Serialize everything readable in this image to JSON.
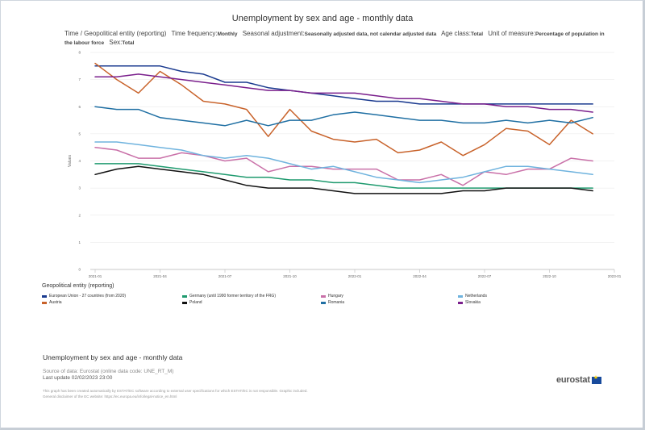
{
  "header": {
    "title": "Unemployment by sex and age - monthly data",
    "subtitle": [
      {
        "k": "Time / Geopolitical entity (reporting)",
        "v": ""
      },
      {
        "k": "Time frequency:",
        "v": "Monthly"
      },
      {
        "k": "Seasonal adjustment:",
        "v": "Seasonally adjusted data, not calendar adjusted data"
      },
      {
        "k": "Age class:",
        "v": "Total"
      },
      {
        "k": "Unit of measure:",
        "v": "Percentage of population in the labour force"
      },
      {
        "k": "Sex:",
        "v": "Total"
      }
    ]
  },
  "chart_data": {
    "type": "line",
    "title": "Unemployment by sex and age - monthly data",
    "xlabel": "",
    "ylabel": "Values",
    "ylim": [
      0,
      8
    ],
    "yticks": [
      "0",
      "1",
      "2",
      "3",
      "4",
      "5",
      "6",
      "7",
      "8"
    ],
    "grid": "horizontal",
    "x": [
      "2021-01",
      "2021-02",
      "2021-03",
      "2021-04",
      "2021-05",
      "2021-06",
      "2021-07",
      "2021-08",
      "2021-09",
      "2021-10",
      "2021-11",
      "2021-12",
      "2022-01",
      "2022-02",
      "2022-03",
      "2022-04",
      "2022-05",
      "2022-06",
      "2022-07",
      "2022-08",
      "2022-09",
      "2022-10",
      "2022-11",
      "2022-12"
    ],
    "xticks": [
      {
        "index": 0,
        "label": "2021-01"
      },
      {
        "index": 3,
        "label": "2021-04"
      },
      {
        "index": 6,
        "label": "2021-07"
      },
      {
        "index": 9,
        "label": "2021-10"
      },
      {
        "index": 12,
        "label": "2022-01"
      },
      {
        "index": 15,
        "label": "2022-04"
      },
      {
        "index": 18,
        "label": "2022-07"
      },
      {
        "index": 21,
        "label": "2022-10"
      },
      {
        "index": 24,
        "label": "2023-01"
      }
    ],
    "series": [
      {
        "name": "European Union - 27 countries (from 2020)",
        "color": "#1a3a8f",
        "values": [
          7.5,
          7.5,
          7.5,
          7.5,
          7.3,
          7.2,
          6.9,
          6.9,
          6.7,
          6.6,
          6.5,
          6.4,
          6.3,
          6.2,
          6.2,
          6.1,
          6.1,
          6.1,
          6.1,
          6.1,
          6.1,
          6.1,
          6.1,
          6.1
        ]
      },
      {
        "name": "Austria",
        "color": "#c8622a",
        "values": [
          7.6,
          7.0,
          6.5,
          7.3,
          6.8,
          6.2,
          6.1,
          5.9,
          4.9,
          5.9,
          5.1,
          4.8,
          4.7,
          4.8,
          4.3,
          4.4,
          4.7,
          4.2,
          4.6,
          5.2,
          5.1,
          4.6,
          5.5,
          5.0
        ]
      },
      {
        "name": "Germany (until 1990 former territory of the FRG)",
        "color": "#1e9a6e",
        "values": [
          3.9,
          3.9,
          3.9,
          3.8,
          3.7,
          3.6,
          3.5,
          3.4,
          3.4,
          3.3,
          3.3,
          3.2,
          3.2,
          3.1,
          3.0,
          3.0,
          3.0,
          3.0,
          3.0,
          3.0,
          3.0,
          3.0,
          3.0,
          3.0
        ]
      },
      {
        "name": "Poland",
        "color": "#111111",
        "values": [
          3.5,
          3.7,
          3.8,
          3.7,
          3.6,
          3.5,
          3.3,
          3.1,
          3.0,
          3.0,
          3.0,
          2.9,
          2.8,
          2.8,
          2.8,
          2.8,
          2.8,
          2.9,
          2.9,
          3.0,
          3.0,
          3.0,
          3.0,
          2.9
        ]
      },
      {
        "name": "Hungary",
        "color": "#c970a8",
        "values": [
          4.5,
          4.4,
          4.1,
          4.1,
          4.3,
          4.2,
          4.0,
          4.1,
          3.6,
          3.8,
          3.8,
          3.7,
          3.7,
          3.7,
          3.3,
          3.3,
          3.5,
          3.1,
          3.6,
          3.5,
          3.7,
          3.7,
          4.1,
          4.0
        ]
      },
      {
        "name": "Romania",
        "color": "#1f6fa3",
        "values": [
          6.0,
          5.9,
          5.9,
          5.6,
          5.5,
          5.4,
          5.3,
          5.5,
          5.3,
          5.5,
          5.5,
          5.7,
          5.8,
          5.7,
          5.6,
          5.5,
          5.5,
          5.4,
          5.4,
          5.5,
          5.4,
          5.5,
          5.4,
          5.6
        ]
      },
      {
        "name": "Netherlands",
        "color": "#6fb3de",
        "values": [
          4.7,
          4.7,
          4.6,
          4.5,
          4.4,
          4.2,
          4.1,
          4.2,
          4.1,
          3.9,
          3.7,
          3.8,
          3.6,
          3.4,
          3.3,
          3.2,
          3.3,
          3.4,
          3.6,
          3.8,
          3.8,
          3.7,
          3.6,
          3.5
        ]
      },
      {
        "name": "Slovakia",
        "color": "#7a1f8c",
        "values": [
          7.1,
          7.1,
          7.2,
          7.1,
          7.0,
          6.9,
          6.8,
          6.7,
          6.6,
          6.6,
          6.5,
          6.5,
          6.5,
          6.4,
          6.3,
          6.3,
          6.2,
          6.1,
          6.1,
          6.0,
          6.0,
          5.9,
          5.9,
          5.8
        ]
      }
    ]
  },
  "legend": {
    "title": "Geopolitical entity (reporting)",
    "order": [
      0,
      2,
      4,
      6,
      1,
      3,
      5,
      7
    ]
  },
  "footer": {
    "title": "Unemployment by sex and age - monthly data",
    "source": "Source of data: Eurostat (online data code: UNE_RT_M)",
    "updated": "Last update 02/02/2023 23:00",
    "disclaimer_1": "This graph has been created automatically by ESTAT/EC software according to external user specifications for which ESTAT/EC is not responsible. Graphic included.",
    "disclaimer_2": "General disclaimer of the EC website: https://ec.europa.eu/info/legal-notice_en.html",
    "logo": "eurostat"
  }
}
